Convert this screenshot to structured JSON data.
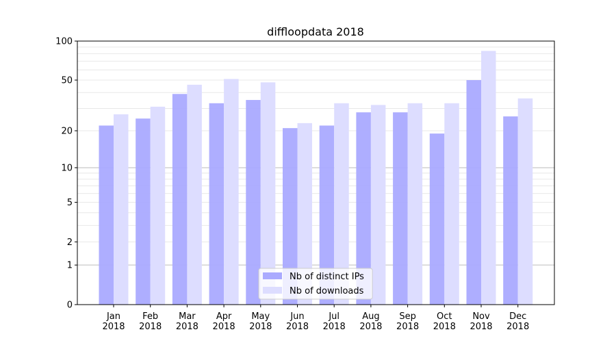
{
  "chart_data": {
    "type": "bar",
    "title": "diffloopdata 2018",
    "xlabel": "",
    "ylabel": "",
    "yscale": "symlog (log10(v+1))",
    "ylim": [
      0,
      100
    ],
    "yticks": [
      0,
      1,
      2,
      5,
      10,
      20,
      50,
      100
    ],
    "grid": "horizontal, major and minor",
    "legend_placement": "lower center",
    "categories": [
      "Jan\n2018",
      "Feb\n2018",
      "Mar\n2018",
      "Apr\n2018",
      "May\n2018",
      "Jun\n2018",
      "Jul\n2018",
      "Aug\n2018",
      "Sep\n2018",
      "Oct\n2018",
      "Nov\n2018",
      "Dec\n2018"
    ],
    "series": [
      {
        "name": "Nb of distinct IPs",
        "color": "#aaaaff",
        "values": [
          22,
          25,
          39,
          33,
          35,
          21,
          22,
          28,
          28,
          19,
          50,
          26
        ]
      },
      {
        "name": "Nb of downloads",
        "color": "#ddddff",
        "values": [
          27,
          31,
          46,
          51,
          48,
          23,
          33,
          32,
          33,
          33,
          84,
          36
        ]
      }
    ]
  }
}
